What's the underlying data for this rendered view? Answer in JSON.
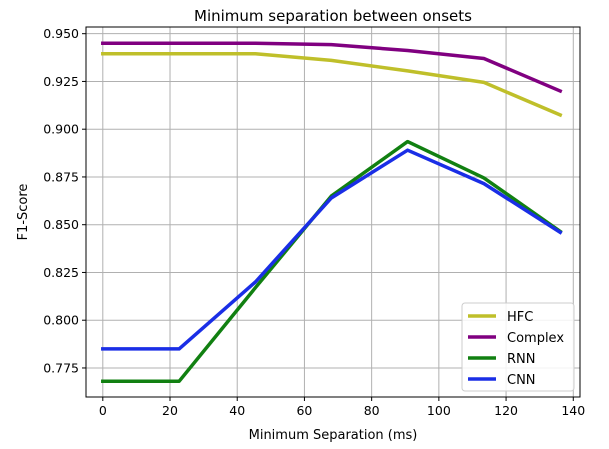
{
  "chart_data": {
    "type": "line",
    "title": "Minimum separation between onsets",
    "xlabel": "Minimum Separation (ms)",
    "ylabel": "F1-Score",
    "xlim": [
      -5,
      142
    ],
    "ylim": [
      0.7598,
      0.9535
    ],
    "xticks": [
      0,
      20,
      40,
      60,
      80,
      100,
      120,
      140
    ],
    "xtick_labels": [
      "0",
      "20",
      "40",
      "60",
      "80",
      "100",
      "120",
      "140"
    ],
    "yticks": [
      0.775,
      0.8,
      0.825,
      0.85,
      0.875,
      0.9,
      0.925,
      0.95
    ],
    "ytick_labels": [
      "0.775",
      "0.800",
      "0.825",
      "0.850",
      "0.875",
      "0.900",
      "0.925",
      "0.950"
    ],
    "grid": true,
    "legend_position": "lower-right",
    "x": [
      0,
      22.7,
      45.4,
      68.0,
      90.7,
      113.4,
      136.1
    ],
    "series": [
      {
        "name": "HFC",
        "color": "#bfbf2a",
        "values": [
          0.9395,
          0.9395,
          0.9395,
          0.936,
          0.9305,
          0.9245,
          0.9075
        ]
      },
      {
        "name": "Complex",
        "color": "#800080",
        "values": [
          0.945,
          0.945,
          0.945,
          0.9443,
          0.9412,
          0.937,
          0.92
        ]
      },
      {
        "name": "RNN",
        "color": "#118011",
        "values": [
          0.768,
          0.768,
          0.817,
          0.865,
          0.8935,
          0.8745,
          0.8465
        ]
      },
      {
        "name": "CNN",
        "color": "#1a2ee6",
        "values": [
          0.785,
          0.785,
          0.82,
          0.864,
          0.889,
          0.8715,
          0.846
        ]
      }
    ]
  }
}
